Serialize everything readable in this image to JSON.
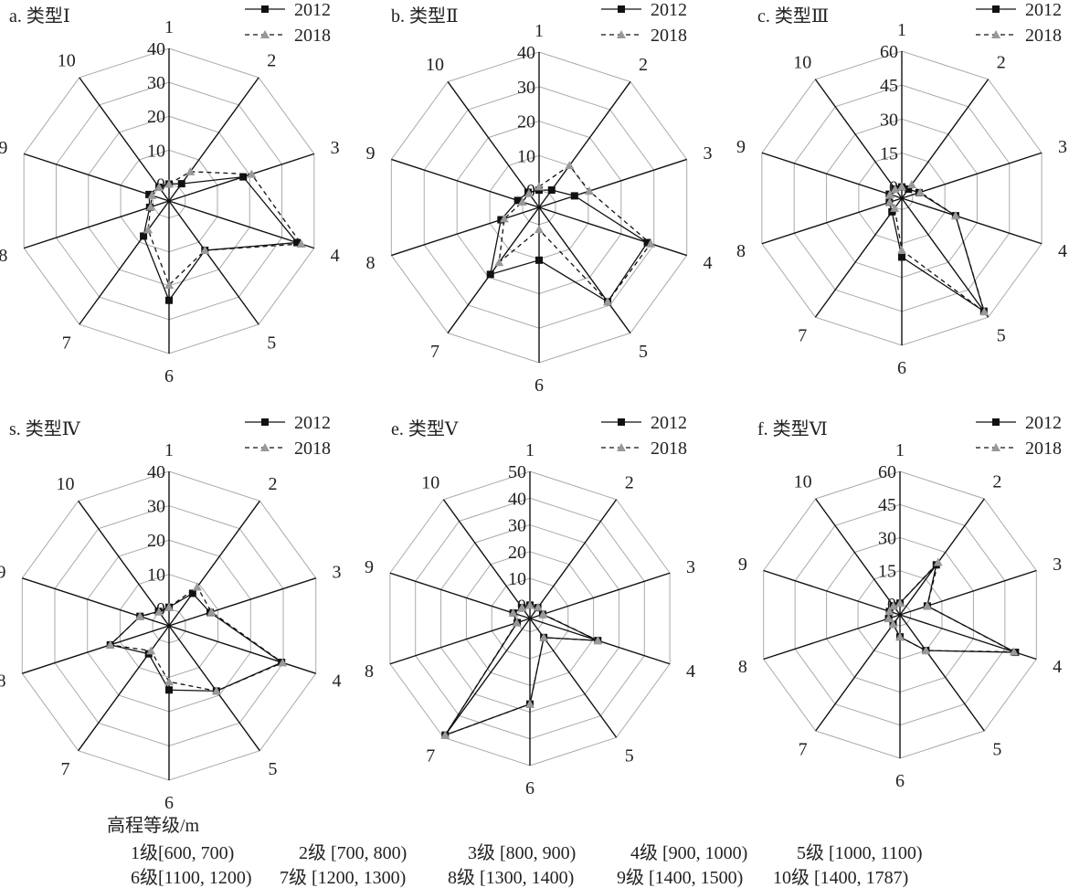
{
  "legend_series": [
    "2012",
    "2018"
  ],
  "colors": {
    "series_2012": "#111111",
    "series_2018": "#999999",
    "grid": "#aaaaaa",
    "spoke": "#111111"
  },
  "chart_data": [
    {
      "type": "radar",
      "title": "a. 类型Ⅰ",
      "axes": [
        "1",
        "2",
        "3",
        "4",
        "5",
        "6",
        "7",
        "8",
        "9",
        "10"
      ],
      "rlim": [
        -5,
        40
      ],
      "ticks": [
        0,
        10,
        20,
        30,
        40
      ],
      "series": [
        {
          "name": "2012",
          "values": [
            0,
            1.3,
            18,
            34.7,
            13,
            24.3,
            7.8,
            1,
            1.2,
            0
          ]
        },
        {
          "name": "2018",
          "values": [
            0,
            5.7,
            20.6,
            36,
            13,
            19.8,
            5.5,
            0.7,
            0.3,
            0
          ]
        }
      ]
    },
    {
      "type": "radar",
      "title": "b. 类型Ⅱ",
      "axes": [
        "1",
        "2",
        "3",
        "4",
        "5",
        "6",
        "7",
        "8",
        "9",
        "10"
      ],
      "rlim": [
        -5,
        40
      ],
      "ticks": [
        0,
        10,
        20,
        30,
        40
      ],
      "series": [
        {
          "name": "2012",
          "values": [
            0,
            1.2,
            5.8,
            28,
            28.8,
            10.3,
            19,
            6.6,
            1.5,
            0.4
          ]
        },
        {
          "name": "2018",
          "values": [
            1,
            10,
            10.3,
            29,
            28.8,
            1.4,
            14.7,
            5.6,
            0.1,
            0
          ]
        }
      ]
    },
    {
      "type": "radar",
      "title": "c. 类型Ⅲ",
      "axes": [
        "1",
        "2",
        "3",
        "4",
        "5",
        "6",
        "7",
        "8",
        "9",
        "10"
      ],
      "rlim": [
        -5,
        60
      ],
      "ticks": [
        0,
        15,
        30,
        45,
        60
      ],
      "series": [
        {
          "name": "2012",
          "values": [
            0,
            0,
            3,
            20,
            56.7,
            21,
            2.4,
            0.8,
            0.8,
            0
          ]
        },
        {
          "name": "2018",
          "values": [
            0.1,
            2.5,
            3.5,
            20,
            57,
            18,
            0.4,
            0.6,
            0.5,
            0
          ]
        }
      ]
    },
    {
      "type": "radar",
      "title": "s. 类型Ⅳ",
      "axes": [
        "1",
        "2",
        "3",
        "4",
        "5",
        "6",
        "7",
        "8",
        "9",
        "10"
      ],
      "rlim": [
        -5,
        40
      ],
      "ticks": [
        0,
        10,
        20,
        30,
        40
      ],
      "series": [
        {
          "name": "2012",
          "values": [
            0.4,
            6.7,
            7.6,
            29.5,
            18.5,
            13.7,
            5.1,
            13,
            3.9,
            0.2
          ]
        },
        {
          "name": "2018",
          "values": [
            0.4,
            9,
            8,
            29.8,
            18.5,
            11.3,
            4,
            13,
            3.9,
            0
          ]
        }
      ]
    },
    {
      "type": "radar",
      "title": "e. 类型Ⅴ",
      "axes": [
        "1",
        "2",
        "3",
        "4",
        "5",
        "6",
        "7",
        "8",
        "9",
        "10"
      ],
      "rlim": [
        -5,
        50
      ],
      "ticks": [
        0,
        10,
        20,
        30,
        40,
        50
      ],
      "series": [
        {
          "name": "2012",
          "values": [
            0,
            0,
            0,
            21.7,
            3.8,
            27,
            48.9,
            0,
            1.6,
            0
          ]
        },
        {
          "name": "2018",
          "values": [
            0,
            0.2,
            0.2,
            21.7,
            3.8,
            27,
            48.9,
            0.2,
            1.6,
            0
          ]
        }
      ]
    },
    {
      "type": "radar",
      "title": "f. 类型Ⅵ",
      "axes": [
        "1",
        "2",
        "3",
        "4",
        "5",
        "6",
        "7",
        "8",
        "9",
        "10"
      ],
      "rlim": [
        -5,
        60
      ],
      "ticks": [
        0,
        15,
        30,
        45,
        60
      ],
      "series": [
        {
          "name": "2012",
          "values": [
            0.3,
            23,
            8,
            50,
            15,
            5,
            0.3,
            0.4,
            0,
            0
          ]
        },
        {
          "name": "2018",
          "values": [
            0.3,
            24.4,
            8,
            49.3,
            15,
            5,
            0.3,
            0.4,
            0,
            0
          ]
        }
      ]
    }
  ],
  "elevation_legend": {
    "title": "高程等级/m",
    "levels": [
      "1级[600, 700)",
      "2级 [700, 800)",
      "3级 [800, 900)",
      "4级 [900, 1000)",
      "5级 [1000, 1100)",
      "6级[1100, 1200)",
      "7级 [1200, 1300)",
      "8级 [1300, 1400)",
      "9级 [1400, 1500)",
      "10级 [1400, 1787)"
    ]
  }
}
